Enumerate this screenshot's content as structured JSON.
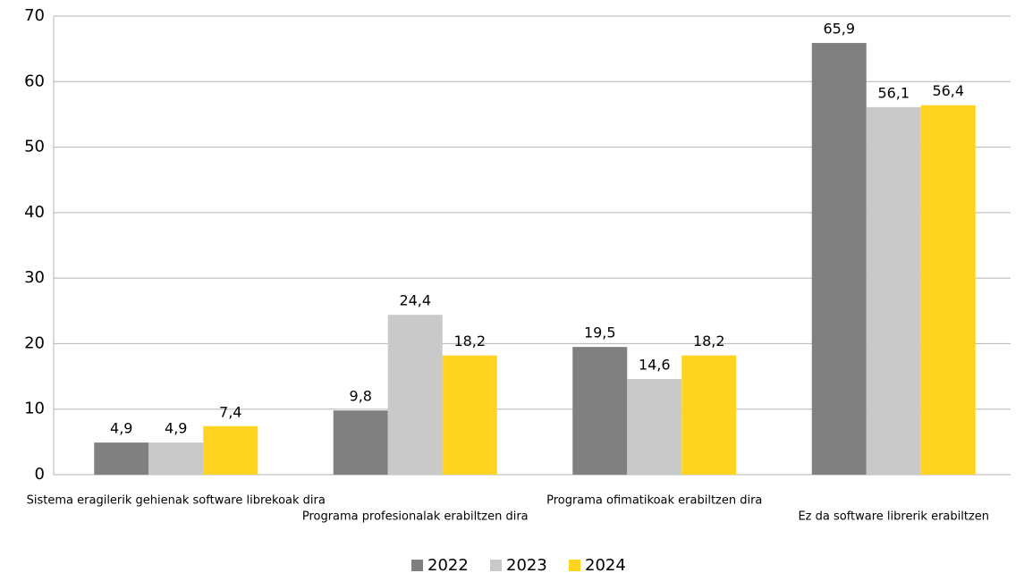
{
  "chart_data": {
    "type": "bar",
    "categories": [
      "Sistema eragilerik gehienak software librekoak dira",
      "Programa profesionalak erabiltzen dira",
      "Programa ofimatikoak erabiltzen dira",
      "Ez da software librerik erabiltzen"
    ],
    "series": [
      {
        "name": "2022",
        "color": "#808080",
        "values": [
          4.9,
          9.8,
          19.5,
          65.9
        ],
        "value_labels": [
          "4,9",
          "9,8",
          "19,5",
          "65,9"
        ]
      },
      {
        "name": "2023",
        "color": "#c9c9c9",
        "values": [
          4.9,
          24.4,
          14.6,
          56.1
        ],
        "value_labels": [
          "4,9",
          "24,4",
          "14,6",
          "56,1"
        ]
      },
      {
        "name": "2024",
        "color": "#ffd320",
        "values": [
          7.4,
          18.2,
          18.2,
          56.4
        ],
        "value_labels": [
          "7,4",
          "18,2",
          "18,2",
          "56,4"
        ]
      }
    ],
    "ylim": [
      0,
      70
    ],
    "yticks": [
      0,
      10,
      20,
      30,
      40,
      50,
      60,
      70
    ],
    "grid": true,
    "legend": "bottom"
  }
}
